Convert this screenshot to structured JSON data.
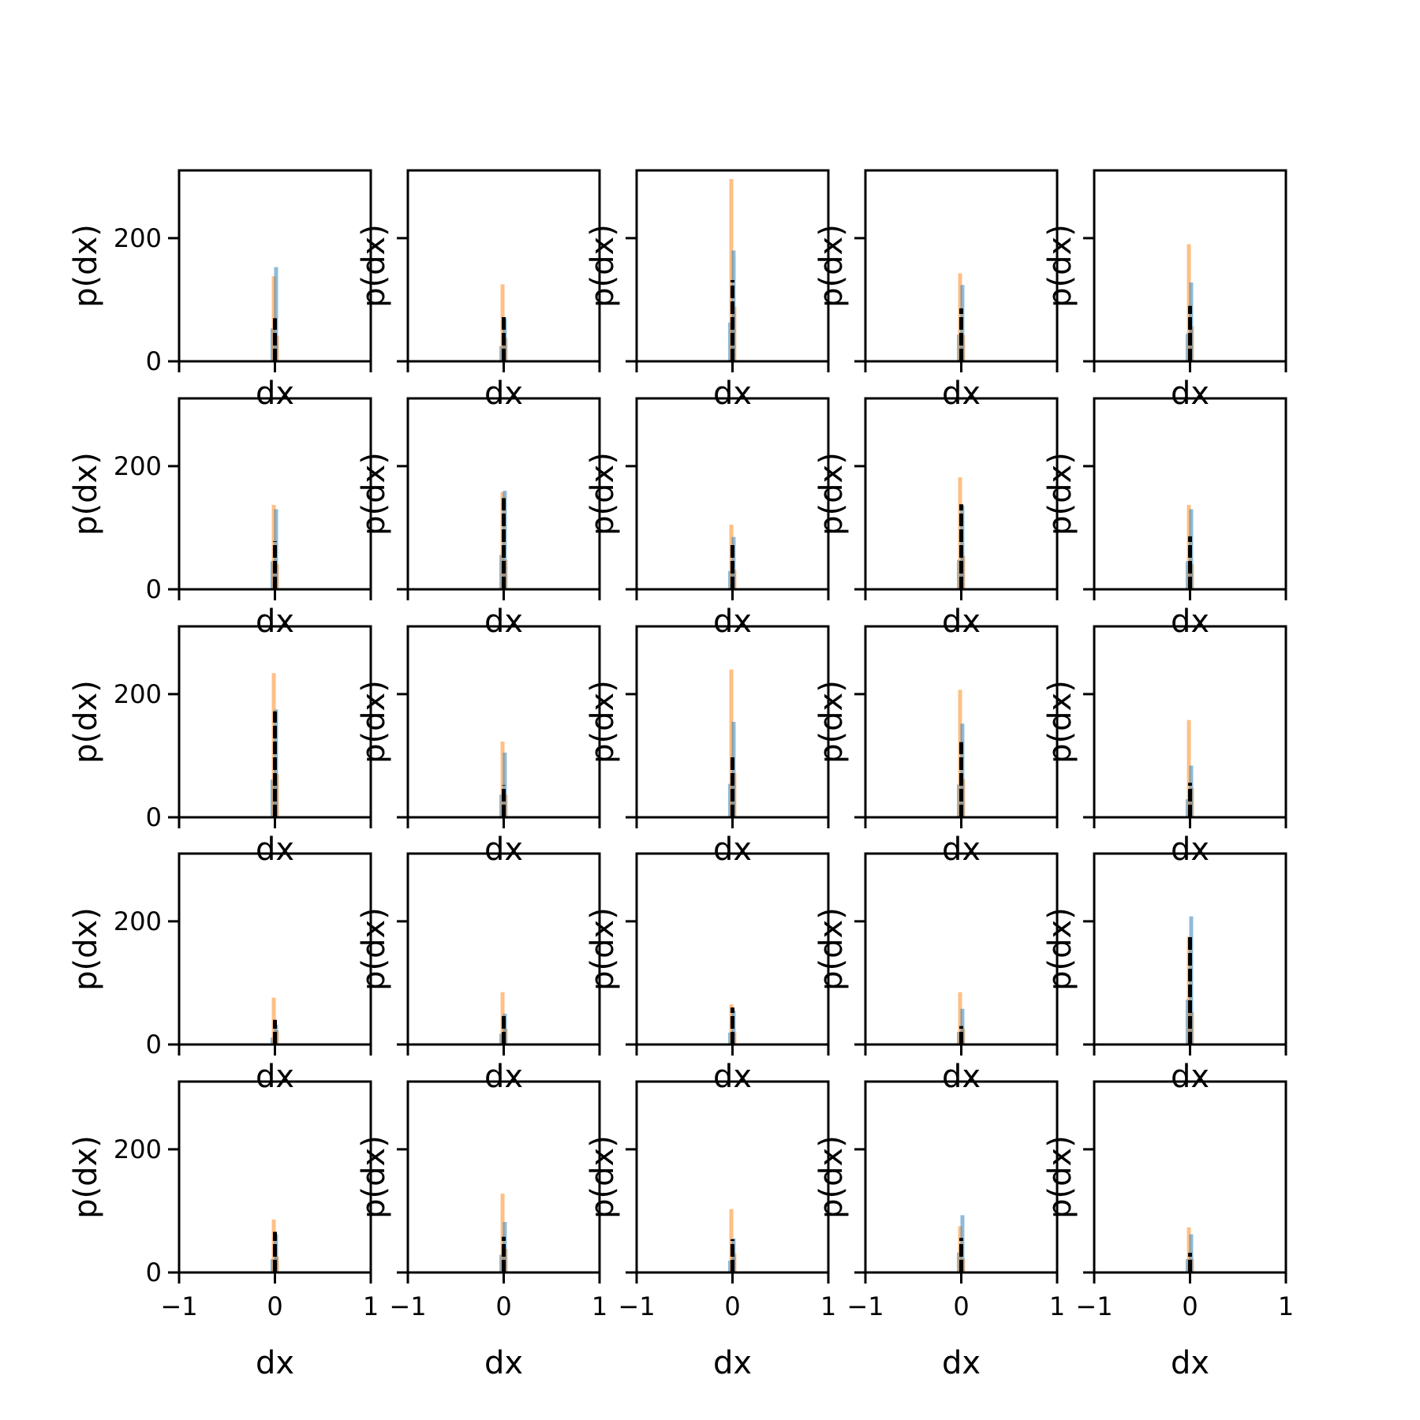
{
  "chart_data": {
    "type": "histogram-grid",
    "rows": 5,
    "cols": 5,
    "sharey": true,
    "xlabel": "dx",
    "ylabel": "p(dx)",
    "xlim": [
      -1,
      1
    ],
    "ylim": [
      0,
      310
    ],
    "xticks": [
      -1,
      0,
      1
    ],
    "xtick_labels": [
      "−1",
      "0",
      "1"
    ],
    "yticks": [
      0,
      200
    ],
    "ytick_labels": [
      "0",
      "200"
    ],
    "colors": {
      "series_blue": "#1f77b4",
      "series_orange": "#ff7f0e",
      "dashed": "#000000"
    },
    "panels": [
      {
        "blue": 153,
        "orange": 138,
        "black": 70
      },
      {
        "blue": 70,
        "orange": 125,
        "black": 74
      },
      {
        "blue": 180,
        "orange": 296,
        "black": 132
      },
      {
        "blue": 124,
        "orange": 143,
        "black": 86
      },
      {
        "blue": 128,
        "orange": 190,
        "black": 90
      },
      {
        "blue": 130,
        "orange": 137,
        "black": 78
      },
      {
        "blue": 160,
        "orange": 158,
        "black": 148
      },
      {
        "blue": 85,
        "orange": 105,
        "black": 74
      },
      {
        "blue": 136,
        "orange": 182,
        "black": 138
      },
      {
        "blue": 130,
        "orange": 137,
        "black": 86
      },
      {
        "blue": 175,
        "orange": 234,
        "black": 172
      },
      {
        "blue": 105,
        "orange": 123,
        "black": 52
      },
      {
        "blue": 155,
        "orange": 240,
        "black": 102
      },
      {
        "blue": 152,
        "orange": 207,
        "black": 122
      },
      {
        "blue": 84,
        "orange": 158,
        "black": 56
      },
      {
        "blue": 32,
        "orange": 76,
        "black": 40
      },
      {
        "blue": 50,
        "orange": 85,
        "black": 50
      },
      {
        "blue": 55,
        "orange": 65,
        "black": 60
      },
      {
        "blue": 58,
        "orange": 85,
        "black": 30
      },
      {
        "blue": 208,
        "orange": 175,
        "black": 175
      },
      {
        "blue": 62,
        "orange": 86,
        "black": 66
      },
      {
        "blue": 82,
        "orange": 128,
        "black": 58
      },
      {
        "blue": 55,
        "orange": 103,
        "black": 54
      },
      {
        "blue": 93,
        "orange": 75,
        "black": 56
      },
      {
        "blue": 62,
        "orange": 73,
        "black": 32
      }
    ]
  }
}
